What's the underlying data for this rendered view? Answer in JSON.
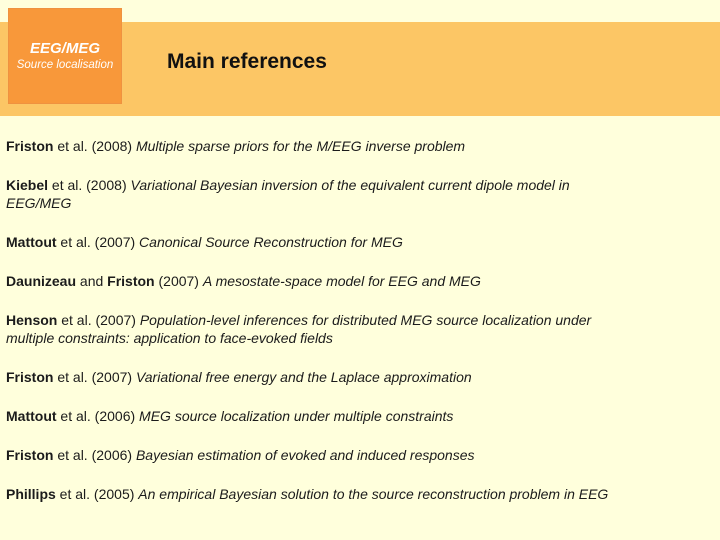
{
  "title": "Main references",
  "badge": {
    "line1": "EEG/MEG",
    "line2": "Source localisation"
  },
  "colors": {
    "background": "#FFFFDC",
    "header_band": "#FCC665",
    "badge_box": "#F8983A",
    "badge_border": "#EF9240",
    "badge_text": "#FFFFFF",
    "body_text": "#1B1B1B",
    "title_text": "#111111"
  },
  "references": [
    {
      "parts": [
        {
          "style": "author",
          "text": "Friston"
        },
        {
          "style": "plain",
          "text": " et al. (2008) "
        },
        {
          "style": "title",
          "text": "Multiple sparse priors for the M/EEG inverse problem"
        }
      ]
    },
    {
      "parts": [
        {
          "style": "author",
          "text": "Kiebel"
        },
        {
          "style": "plain",
          "text": " et al. (2008) "
        },
        {
          "style": "title",
          "text": "Variational Bayesian inversion of the equivalent current dipole model in\nEEG/MEG"
        }
      ]
    },
    {
      "parts": [
        {
          "style": "author",
          "text": "Mattout"
        },
        {
          "style": "plain",
          "text": " et al. (2007) "
        },
        {
          "style": "title",
          "text": "Canonical Source Reconstruction for MEG"
        }
      ]
    },
    {
      "parts": [
        {
          "style": "author",
          "text": "Daunizeau"
        },
        {
          "style": "plain",
          "text": " and "
        },
        {
          "style": "author",
          "text": "Friston"
        },
        {
          "style": "plain",
          "text": " (2007) "
        },
        {
          "style": "title",
          "text": "A mesostate-space model for EEG and MEG"
        }
      ]
    },
    {
      "parts": [
        {
          "style": "author",
          "text": "Henson"
        },
        {
          "style": "plain",
          "text": " et al. (2007) "
        },
        {
          "style": "title",
          "text": "Population-level inferences for distributed MEG source localization under\nmultiple constraints: application to face-evoked fields"
        }
      ]
    },
    {
      "parts": [
        {
          "style": "author",
          "text": "Friston"
        },
        {
          "style": "plain",
          "text": " et al. (2007) "
        },
        {
          "style": "title",
          "text": "Variational free energy and the Laplace approximation"
        }
      ]
    },
    {
      "parts": [
        {
          "style": "author",
          "text": "Mattout"
        },
        {
          "style": "plain",
          "text": " et al. (2006) "
        },
        {
          "style": "title",
          "text": "MEG source localization under multiple constraints"
        }
      ]
    },
    {
      "parts": [
        {
          "style": "author",
          "text": "Friston"
        },
        {
          "style": "plain",
          "text": " et al. (2006) "
        },
        {
          "style": "title",
          "text": "Bayesian estimation of evoked and induced responses"
        }
      ]
    },
    {
      "parts": [
        {
          "style": "author",
          "text": "Phillips"
        },
        {
          "style": "plain",
          "text": " et al. (2005) "
        },
        {
          "style": "title",
          "text": "An empirical Bayesian solution to the source reconstruction problem in EEG"
        }
      ]
    }
  ]
}
